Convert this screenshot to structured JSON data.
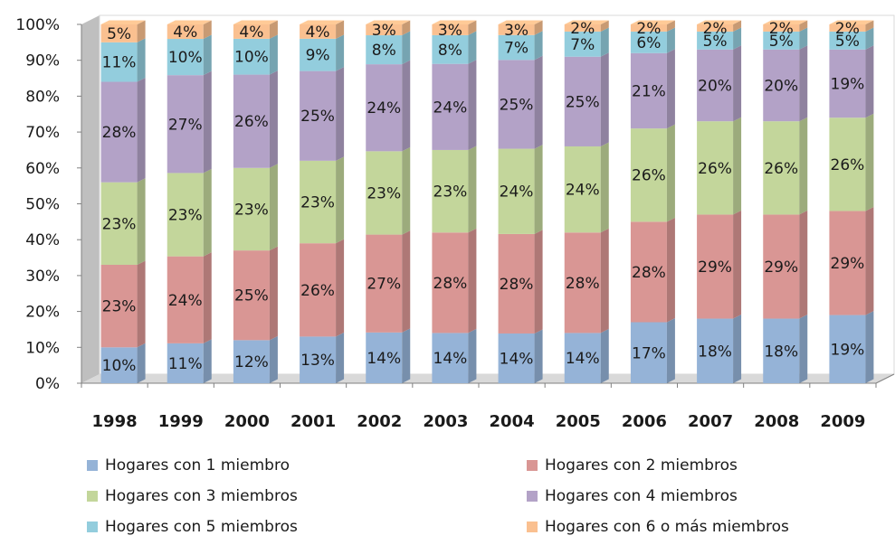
{
  "chart_data": {
    "type": "bar",
    "stacked": true,
    "normalized": true,
    "three_d": true,
    "categories": [
      "1998",
      "1999",
      "2000",
      "2001",
      "2002",
      "2003",
      "2004",
      "2005",
      "2006",
      "2007",
      "2008",
      "2009"
    ],
    "series": [
      {
        "name": "Hogares con 1 miembro",
        "color": "#95b3d7",
        "values": [
          10,
          11,
          12,
          13,
          14,
          14,
          14,
          14,
          17,
          18,
          18,
          19
        ]
      },
      {
        "name": "Hogares con 2 miembros",
        "color": "#d99694",
        "values": [
          23,
          24,
          25,
          26,
          27,
          28,
          28,
          28,
          28,
          29,
          29,
          29
        ]
      },
      {
        "name": "Hogares con 3 miembros",
        "color": "#c3d69b",
        "values": [
          23,
          23,
          23,
          23,
          23,
          23,
          24,
          24,
          26,
          26,
          26,
          26
        ]
      },
      {
        "name": "Hogares con 4 miembros",
        "color": "#b3a2c7",
        "values": [
          28,
          27,
          26,
          25,
          24,
          24,
          25,
          25,
          21,
          20,
          20,
          19
        ]
      },
      {
        "name": "Hogares con 5 miembros",
        "color": "#93cddd",
        "values": [
          11,
          10,
          10,
          9,
          8,
          8,
          7,
          7,
          6,
          5,
          5,
          5
        ]
      },
      {
        "name": "Hogares con 6 o más miembros",
        "color": "#fac090",
        "values": [
          5,
          4,
          4,
          4,
          3,
          3,
          3,
          2,
          2,
          2,
          2,
          2
        ]
      }
    ],
    "y_ticks": [
      "0%",
      "10%",
      "20%",
      "30%",
      "40%",
      "50%",
      "60%",
      "70%",
      "80%",
      "90%",
      "100%"
    ],
    "ylim": [
      0,
      100
    ],
    "legend_position": "bottom",
    "data_label_suffix": "%"
  },
  "legend": {
    "items": [
      {
        "label": "Hogares con 1 miembro",
        "color": "#95b3d7"
      },
      {
        "label": "Hogares con 2 miembros",
        "color": "#d99694"
      },
      {
        "label": "Hogares con 3 miembros",
        "color": "#c3d69b"
      },
      {
        "label": "Hogares con 4 miembros",
        "color": "#b3a2c7"
      },
      {
        "label": "Hogares con 5 miembros",
        "color": "#93cddd"
      },
      {
        "label": "Hogares con 6 o más miembros",
        "color": "#fac090"
      }
    ]
  }
}
